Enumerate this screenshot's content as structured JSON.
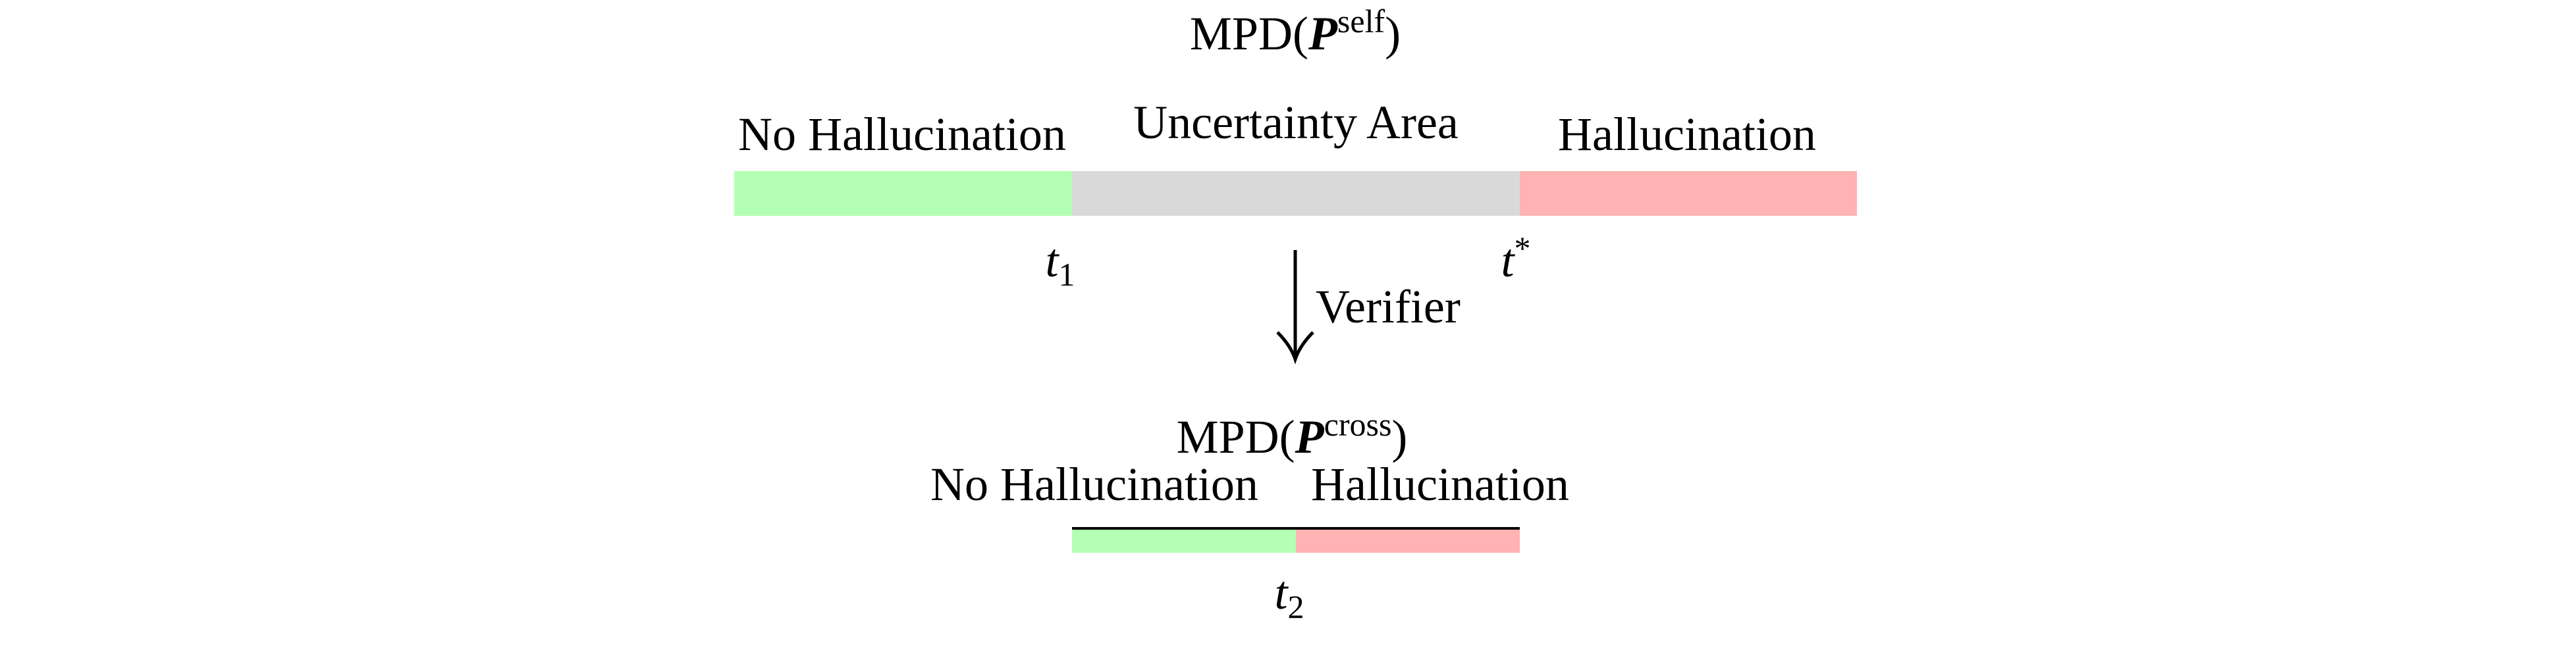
{
  "top": {
    "title": {
      "prefix": "MPD(",
      "symbol": "P",
      "superscript": "self",
      "suffix": ")"
    },
    "labels": {
      "left": "No Hallucination",
      "middle": "Uncertainty Area",
      "right": "Hallucination"
    },
    "thresholds": [
      {
        "symbol": "t",
        "subscript": "1"
      },
      {
        "symbol": "t",
        "superscript": "*"
      }
    ]
  },
  "arrow": {
    "label": "Verifier"
  },
  "bottom": {
    "title": {
      "prefix": "MPD(",
      "symbol": "P",
      "superscript": "cross",
      "suffix": ")"
    },
    "labels": {
      "left": "No Hallucination",
      "right": "Hallucination"
    },
    "threshold": {
      "symbol": "t",
      "subscript": "2"
    }
  }
}
